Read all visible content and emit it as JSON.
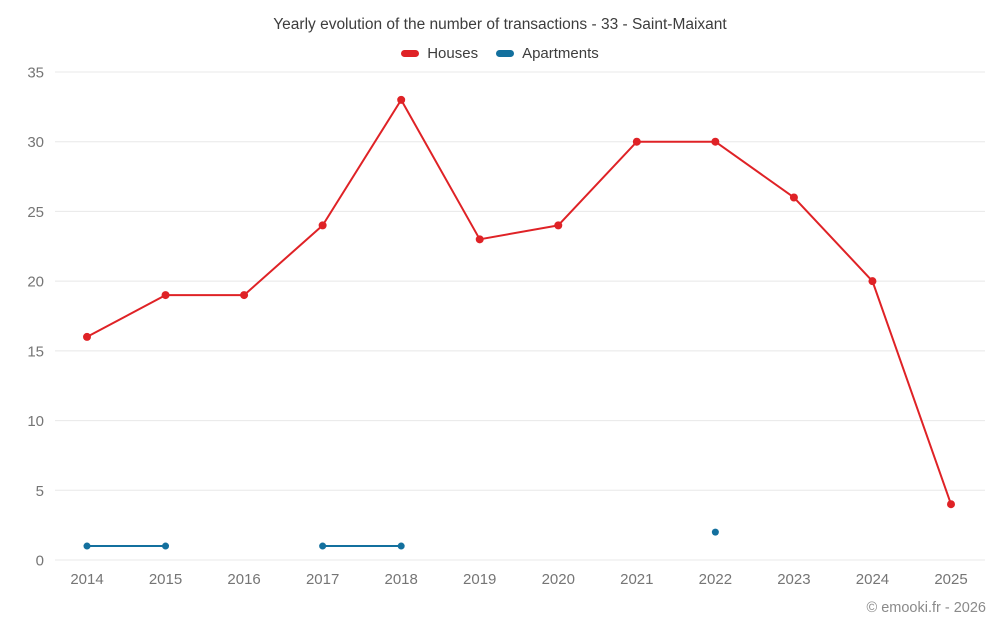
{
  "chart": {
    "footer": "© emooki.fr - 2026"
  },
  "chart_data": {
    "type": "line",
    "title": "Yearly evolution of the number of transactions - 33 - Saint-Maixant",
    "categories": [
      "2014",
      "2015",
      "2016",
      "2017",
      "2018",
      "2019",
      "2020",
      "2021",
      "2022",
      "2023",
      "2024",
      "2025"
    ],
    "series": [
      {
        "name": "Houses",
        "color": "#df2226",
        "values": [
          16,
          19,
          19,
          24,
          33,
          23,
          24,
          30,
          30,
          26,
          20,
          4
        ]
      },
      {
        "name": "Apartments",
        "color": "#13709e",
        "values": [
          1,
          1,
          null,
          1,
          1,
          null,
          null,
          null,
          2,
          null,
          null,
          null
        ]
      }
    ],
    "xlabel": "",
    "ylabel": "",
    "ylim": [
      0,
      35
    ],
    "yticks": [
      0,
      5,
      10,
      15,
      20,
      25,
      30,
      35
    ],
    "grid": "horizontal",
    "legend_position": "top"
  }
}
